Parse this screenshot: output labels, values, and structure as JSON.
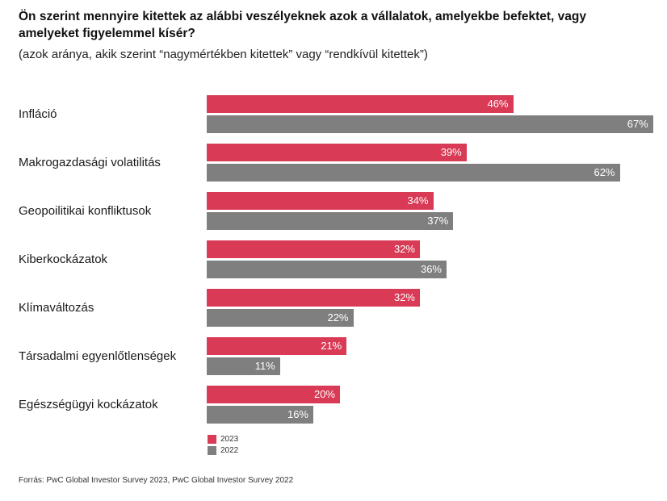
{
  "chart_data": {
    "type": "bar",
    "orientation": "horizontal",
    "title": "Ön szerint mennyire kitettek az alábbi veszélyeknek azok a vállalatok, amelyekbe befektet, vagy amelyeket figyelemmel kísér?",
    "subtitle": "(azok aránya, akik szerint “nagymértékben kitettek” vagy “rendkívül kitettek”)",
    "categories": [
      "Infláció",
      "Makrogazdasági volatilitás",
      "Geopoilitikai konfliktusok",
      "Kiberkockázatok",
      "Klímaváltozás",
      "Társadalmi egyenlőtlenségek",
      "Egészségügyi kockázatok"
    ],
    "series": [
      {
        "name": "2023",
        "color": "#d93a55",
        "values": [
          46,
          39,
          34,
          32,
          32,
          21,
          20
        ]
      },
      {
        "name": "2022",
        "color": "#7f7f7f",
        "values": [
          67,
          62,
          37,
          36,
          22,
          11,
          16
        ]
      }
    ],
    "value_suffix": "%",
    "xlim": [
      0,
      67
    ],
    "grid": false,
    "legend": {
      "position": "bottom-left",
      "entries": [
        "2023",
        "2022"
      ]
    },
    "source": "Forrás: PwC Global Investor Survey 2023, PwC Global Investor Survey 2022"
  }
}
